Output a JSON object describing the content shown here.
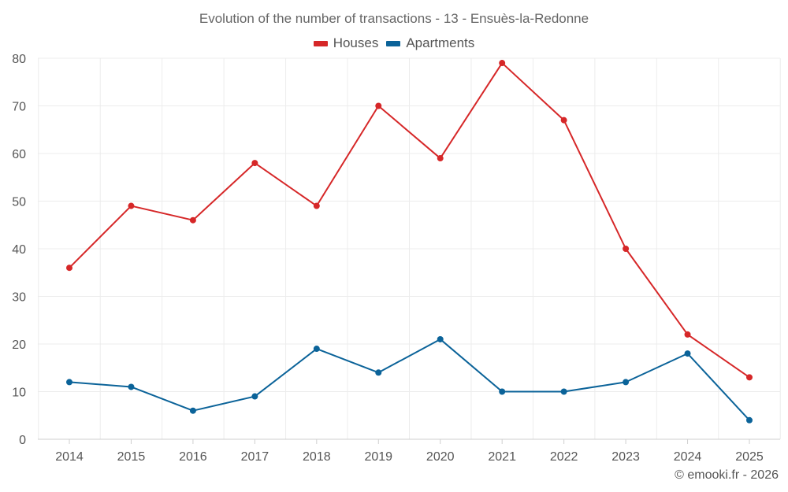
{
  "chart_data": {
    "type": "line",
    "title": "Evolution of the number of transactions - 13 - Ensuès-la-Redonne",
    "categories": [
      "2014",
      "2015",
      "2016",
      "2017",
      "2018",
      "2019",
      "2020",
      "2021",
      "2022",
      "2023",
      "2024",
      "2025"
    ],
    "series": [
      {
        "name": "Houses",
        "color": "#d62728",
        "values": [
          36,
          49,
          46,
          58,
          49,
          70,
          59,
          79,
          67,
          40,
          22,
          13
        ]
      },
      {
        "name": "Apartments",
        "color": "#0b6399",
        "values": [
          12,
          11,
          6,
          9,
          19,
          14,
          21,
          10,
          10,
          12,
          18,
          4
        ]
      }
    ],
    "ylim": [
      0,
      80
    ],
    "yticks": [
      "0",
      "10",
      "20",
      "30",
      "40",
      "50",
      "60",
      "70",
      "80"
    ],
    "xlabel": "",
    "ylabel": "",
    "grid": true,
    "legend_position": "top-center"
  },
  "credit": "© emooki.fr - 2026"
}
